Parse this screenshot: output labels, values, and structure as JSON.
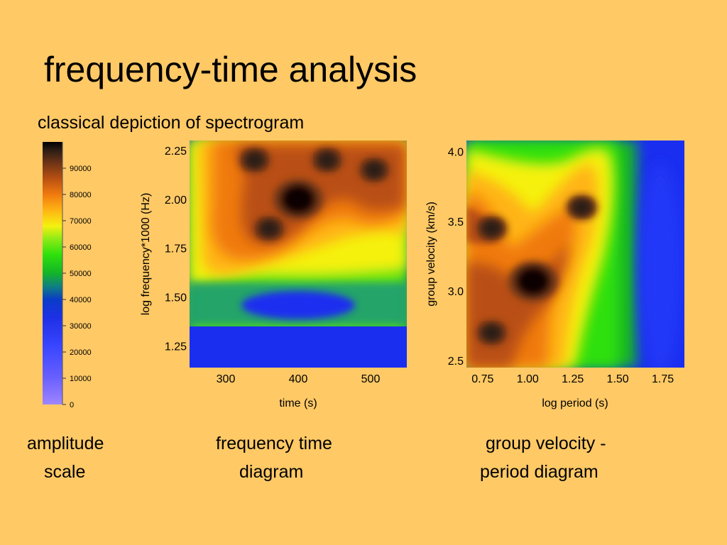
{
  "title": "frequency-time analysis",
  "subtitle": "classical depiction of spectrogram",
  "captions": {
    "scale": [
      "amplitude",
      "scale"
    ],
    "ft": [
      "frequency time",
      "diagram"
    ],
    "gv": [
      "group velocity -",
      "period diagram"
    ]
  },
  "colors": {
    "background": "#FFC966",
    "scale_stops": [
      "#9F86FF",
      "#5A5AFF",
      "#1D33F2",
      "#0A3CC8",
      "#0F7B8C",
      "#12B428",
      "#2EE00C",
      "#8DEB16",
      "#F5F10F",
      "#FFB414",
      "#F07A0E",
      "#B95012",
      "#6E3416",
      "#2A1C14",
      "#000000"
    ]
  },
  "chart_data": [
    {
      "type": "heatmap",
      "title": "amplitude scale",
      "ticks": [
        "0",
        "10000",
        "20000",
        "30000",
        "40000",
        "50000",
        "60000",
        "70000",
        "80000",
        "90000"
      ],
      "range": [
        0,
        100000
      ]
    },
    {
      "type": "heatmap",
      "title": "frequency time diagram",
      "xlabel": "time (s)",
      "ylabel": "log frequency*1000 (Hz)",
      "xticks": [
        "300",
        "400",
        "500"
      ],
      "yticks": [
        "1.25",
        "1.50",
        "1.75",
        "2.00",
        "2.25"
      ],
      "xlim": [
        250,
        550
      ],
      "ylim": [
        1.14,
        2.3
      ],
      "blobs": [
        {
          "x": 400,
          "y": 2.0,
          "amp": 0.98,
          "desc": "peak"
        },
        {
          "x": 360,
          "y": 1.85,
          "amp": 0.78
        },
        {
          "x": 505,
          "y": 2.15,
          "amp": 0.85
        },
        {
          "x": 440,
          "y": 2.2,
          "amp": 0.8
        },
        {
          "x": 340,
          "y": 2.2,
          "amp": 0.72
        }
      ]
    },
    {
      "type": "heatmap",
      "title": "group velocity - period diagram",
      "xlabel": "log  period  (s)",
      "ylabel": "group velocity (km/s)",
      "xticks": [
        "0.75",
        "1.00",
        "1.25",
        "1.50",
        "1.75"
      ],
      "yticks": [
        "2.5",
        "3.0",
        "3.5",
        "4.0"
      ],
      "xlim": [
        0.66,
        1.87
      ],
      "ylim": [
        2.45,
        4.08
      ],
      "blobs": [
        {
          "x": 1.03,
          "y": 3.07,
          "amp": 0.98,
          "desc": "peak"
        },
        {
          "x": 0.8,
          "y": 2.7,
          "amp": 0.88
        },
        {
          "x": 0.8,
          "y": 3.45,
          "amp": 0.75
        },
        {
          "x": 1.3,
          "y": 3.6,
          "amp": 0.72
        }
      ]
    }
  ]
}
